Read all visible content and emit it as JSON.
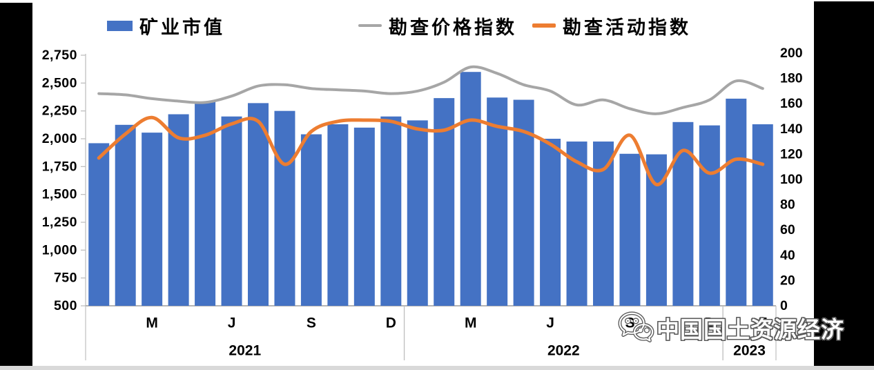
{
  "legend": {
    "items": [
      {
        "label": "矿业市值",
        "type": "bar",
        "color": "#4472C4"
      },
      {
        "label": "勘查价格指数",
        "type": "line",
        "color": "#A6A6A6"
      },
      {
        "label": "勘查活动指数",
        "type": "line",
        "color": "#ED7D31"
      }
    ]
  },
  "watermark": {
    "icon": "wechat-icon",
    "text": "中国国土资源经济"
  },
  "left_axis": {
    "tick_labels": [
      "2,750",
      "2,500",
      "2,250",
      "2,000",
      "1,750",
      "1,500",
      "1,250",
      "1,000",
      "750",
      "500"
    ],
    "min": 500,
    "max": 2750
  },
  "right_axis": {
    "tick_labels": [
      "200",
      "180",
      "160",
      "140",
      "120",
      "100",
      "80",
      "60",
      "40",
      "20",
      "0"
    ],
    "min": 0,
    "max": 200
  },
  "x_axis": {
    "month_labels": [
      {
        "text": "M",
        "index": 2
      },
      {
        "text": "J",
        "index": 5
      },
      {
        "text": "S",
        "index": 8
      },
      {
        "text": "D",
        "index": 11
      },
      {
        "text": "M",
        "index": 14
      },
      {
        "text": "J",
        "index": 17
      },
      {
        "text": "S",
        "index": 20
      },
      {
        "text": "D",
        "index": 23
      },
      {
        "text": "F",
        "index": 25
      }
    ],
    "year_sections": [
      {
        "label": "2021",
        "start": 0,
        "end": 12
      },
      {
        "label": "2022",
        "start": 12,
        "end": 24
      },
      {
        "label": "2023",
        "start": 24,
        "end": 26
      }
    ]
  },
  "chart_data": {
    "type": "combo",
    "x": [
      "2021-01",
      "2021-02",
      "2021-03",
      "2021-04",
      "2021-05",
      "2021-06",
      "2021-07",
      "2021-08",
      "2021-09",
      "2021-10",
      "2021-11",
      "2021-12",
      "2022-01",
      "2022-02",
      "2022-03",
      "2022-04",
      "2022-05",
      "2022-06",
      "2022-07",
      "2022-08",
      "2022-09",
      "2022-10",
      "2022-11",
      "2022-12",
      "2023-01",
      "2023-02"
    ],
    "series": [
      {
        "name": "矿业市值",
        "type": "bar",
        "axis": "left",
        "color": "#4472C4",
        "values": [
          1960,
          2125,
          2055,
          2220,
          2330,
          2200,
          2320,
          2250,
          2040,
          2130,
          2100,
          2200,
          2165,
          2365,
          2600,
          2370,
          2350,
          2000,
          1975,
          1975,
          1865,
          1860,
          2150,
          2120,
          2360,
          2130
        ]
      },
      {
        "name": "勘查价格指数",
        "type": "line",
        "axis": "right",
        "color": "#A6A6A6",
        "width": 4,
        "values": [
          168,
          167,
          164,
          162,
          161,
          166,
          174,
          175,
          172,
          171,
          170,
          168,
          170,
          177,
          189,
          184,
          175,
          170,
          159,
          163,
          156,
          152,
          157,
          163,
          178,
          172
        ]
      },
      {
        "name": "勘查活动指数",
        "type": "line",
        "axis": "right",
        "color": "#ED7D31",
        "width": 5,
        "values": [
          117,
          136,
          149,
          133,
          135,
          144,
          146,
          112,
          138,
          146,
          147,
          146,
          140,
          139,
          147,
          142,
          138,
          128,
          114,
          108,
          135,
          96,
          123,
          105,
          116,
          112
        ]
      }
    ],
    "left_ylim": [
      500,
      2750
    ],
    "right_ylim": [
      0,
      200
    ],
    "grid": false,
    "legend_position": "top",
    "smoothed_lines": true
  }
}
